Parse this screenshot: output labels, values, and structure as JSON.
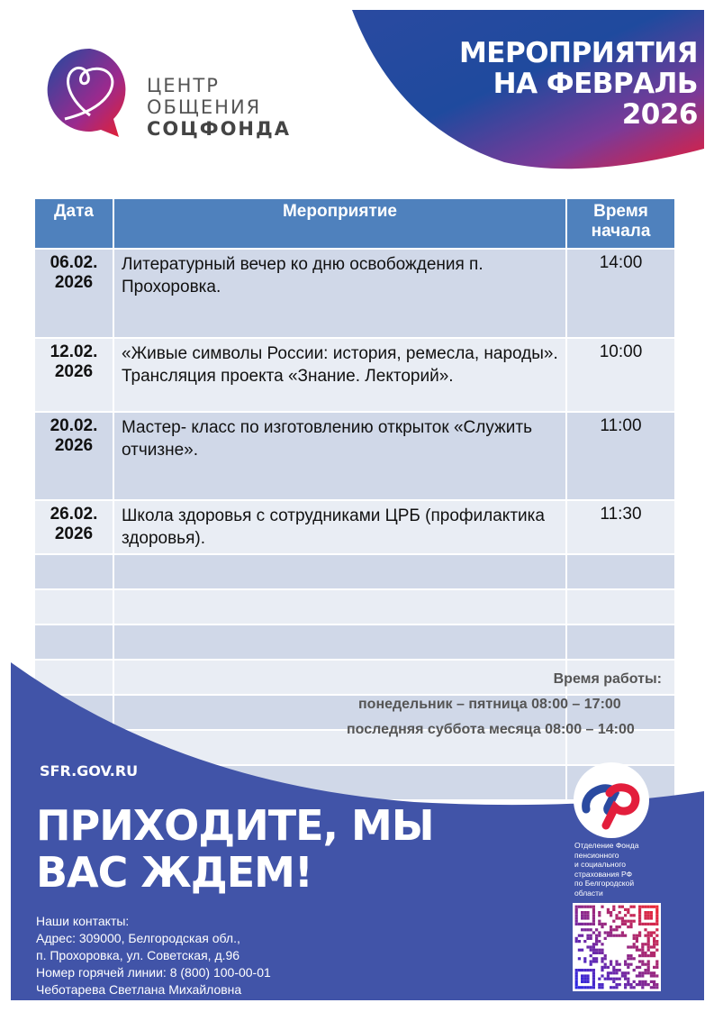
{
  "header": {
    "title_lines": [
      "МЕРОПРИЯТИЯ",
      "НА ФЕВРАЛЬ",
      "2026"
    ],
    "logo_lines": [
      "ЦЕНТР",
      "ОБЩЕНИЯ",
      "СОЦФОНДА"
    ]
  },
  "table": {
    "headers": [
      "Дата",
      "Мероприятие",
      "Время начала"
    ],
    "rows": [
      {
        "date": "06.02. 2026",
        "event": "Литературный вечер ко дню освобождения п. Прохоровка.",
        "time": "14:00"
      },
      {
        "date": "12.02. 2026",
        "event": "«Живые символы России: история, ремесла, народы». Трансляция проекта «Знание. Лекторий».",
        "time": "10:00"
      },
      {
        "date": "20.02. 2026",
        "event": "Мастер- класс по изготовлению открыток «Служить отчизне».",
        "time": "11:00"
      },
      {
        "date": "26.02. 2026",
        "event": "Школа здоровья с сотрудниками ЦРБ (профилактика здоровья).",
        "time": "11:30"
      }
    ]
  },
  "hours": {
    "title": "Время работы:",
    "weekdays": "понедельник – пятница 08:00 – 17:00",
    "saturday": "последняя суббота месяца 08:00 – 14:00"
  },
  "footer": {
    "site": "SFR.GOV.RU",
    "slogan_lines": [
      "ПРИХОДИТЕ, МЫ",
      "ВАС ЖДЕМ!"
    ],
    "contacts": [
      "Наши контакты:",
      "Адрес: 309000, Белгородская обл.,",
      "п. Прохоровка, ул. Советская, д.96",
      "Номер горячей линии: 8 (800) 100-00-01",
      "Чеботарева Светлана Михайловна"
    ],
    "org_lines": [
      "Отделение Фонда",
      "пенсионного",
      "и социального",
      "страхования РФ",
      "по Белгородской",
      "области"
    ]
  },
  "colors": {
    "blue": "#4154a8",
    "header_blue": "#4f81bd",
    "red": "#e31e3c",
    "row_dark": "#d0d8e8",
    "row_light": "#e9edf4"
  }
}
